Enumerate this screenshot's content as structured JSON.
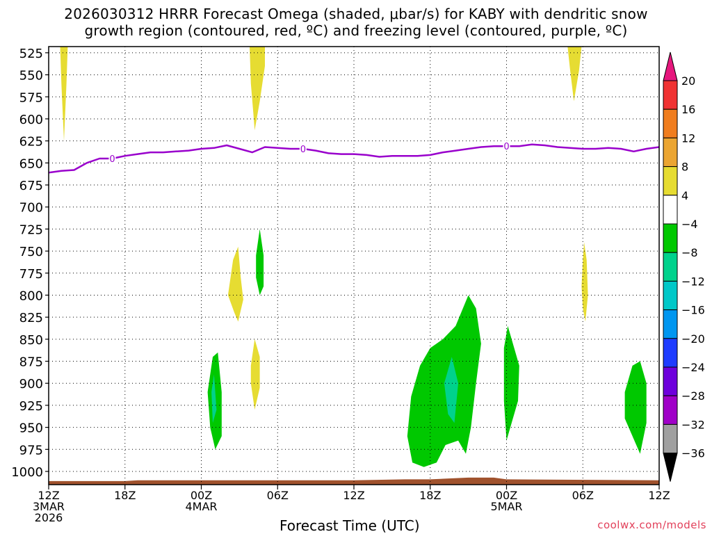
{
  "title_line1": "2026030312 HRRR Forecast Omega (shaded, μbar/s) for KABY with dendritic snow",
  "title_line2": "growth region (contoured, red, ºC) and freezing level (contoured, purple, ºC)",
  "credit": "coolwx.com/models",
  "chart_data": {
    "type": "contour",
    "xlabel": "Forecast Time (UTC)",
    "xlim_hours": [
      0,
      48
    ],
    "ylim_hpa": [
      1015,
      518
    ],
    "y_scale": "linear (pressure)",
    "grid": true,
    "x_ticks": [
      {
        "hour": 0,
        "lines": [
          "12Z",
          "3MAR",
          "2026"
        ]
      },
      {
        "hour": 6,
        "lines": [
          "18Z"
        ]
      },
      {
        "hour": 12,
        "lines": [
          "00Z",
          "4MAR"
        ]
      },
      {
        "hour": 18,
        "lines": [
          "06Z"
        ]
      },
      {
        "hour": 24,
        "lines": [
          "12Z"
        ]
      },
      {
        "hour": 30,
        "lines": [
          "18Z"
        ]
      },
      {
        "hour": 36,
        "lines": [
          "00Z",
          "5MAR"
        ]
      },
      {
        "hour": 42,
        "lines": [
          "06Z"
        ]
      },
      {
        "hour": 48,
        "lines": [
          "12Z"
        ]
      }
    ],
    "y_ticks": [
      525,
      550,
      575,
      600,
      625,
      650,
      675,
      700,
      725,
      750,
      775,
      800,
      825,
      850,
      875,
      900,
      925,
      950,
      975,
      1000
    ],
    "freezing_level": {
      "label": "0",
      "color": "#9900cc",
      "label_hours": [
        5,
        20,
        36
      ],
      "points": [
        [
          0,
          661
        ],
        [
          1,
          659
        ],
        [
          2,
          658
        ],
        [
          3,
          650
        ],
        [
          4,
          645
        ],
        [
          5,
          645
        ],
        [
          6,
          642
        ],
        [
          7,
          640
        ],
        [
          8,
          638
        ],
        [
          9,
          638
        ],
        [
          10,
          637
        ],
        [
          11,
          636
        ],
        [
          12,
          634
        ],
        [
          13,
          633
        ],
        [
          14,
          630
        ],
        [
          15,
          634
        ],
        [
          16,
          638
        ],
        [
          17,
          632
        ],
        [
          18,
          633
        ],
        [
          19,
          634
        ],
        [
          20,
          634
        ],
        [
          21,
          636
        ],
        [
          22,
          639
        ],
        [
          23,
          640
        ],
        [
          24,
          640
        ],
        [
          25,
          641
        ],
        [
          26,
          643
        ],
        [
          27,
          642
        ],
        [
          28,
          642
        ],
        [
          29,
          642
        ],
        [
          30,
          641
        ],
        [
          31,
          638
        ],
        [
          32,
          636
        ],
        [
          33,
          634
        ],
        [
          34,
          632
        ],
        [
          35,
          631
        ],
        [
          36,
          631
        ],
        [
          37,
          631
        ],
        [
          38,
          629
        ],
        [
          39,
          630
        ],
        [
          40,
          632
        ],
        [
          41,
          633
        ],
        [
          42,
          634
        ],
        [
          43,
          634
        ],
        [
          44,
          633
        ],
        [
          45,
          634
        ],
        [
          46,
          637
        ],
        [
          47,
          634
        ],
        [
          48,
          632
        ]
      ]
    },
    "omega_regions": [
      {
        "bin": "4 to 8",
        "color": "#e6dc32",
        "points": [
          [
            0.9,
            518
          ],
          [
            1.0,
            560
          ],
          [
            1.2,
            625
          ],
          [
            1.4,
            560
          ],
          [
            1.5,
            518
          ]
        ]
      },
      {
        "bin": "4 to 8",
        "color": "#e6dc32",
        "points": [
          [
            15.8,
            518
          ],
          [
            15.9,
            560
          ],
          [
            16.1,
            595
          ],
          [
            16.2,
            613
          ],
          [
            16.6,
            580
          ],
          [
            17.0,
            540
          ],
          [
            17.0,
            518
          ]
        ]
      },
      {
        "bin": "4 to 8",
        "color": "#e6dc32",
        "points": [
          [
            40.8,
            518
          ],
          [
            41.0,
            545
          ],
          [
            41.3,
            580
          ],
          [
            41.7,
            545
          ],
          [
            41.9,
            518
          ]
        ]
      },
      {
        "bin": "4 to 8",
        "color": "#e6dc32",
        "points": [
          [
            14.1,
            800
          ],
          [
            14.5,
            760
          ],
          [
            14.9,
            745
          ],
          [
            15.1,
            780
          ],
          [
            15.3,
            805
          ],
          [
            14.9,
            830
          ],
          [
            14.6,
            820
          ]
        ]
      },
      {
        "bin": "4 to 8",
        "color": "#e6dc32",
        "points": [
          [
            15.9,
            880
          ],
          [
            16.2,
            850
          ],
          [
            16.6,
            870
          ],
          [
            16.6,
            905
          ],
          [
            16.2,
            930
          ],
          [
            15.9,
            900
          ]
        ]
      },
      {
        "bin": "4 to 8",
        "color": "#e6dc32",
        "points": [
          [
            41.9,
            790
          ],
          [
            42.0,
            760
          ],
          [
            42.1,
            740
          ],
          [
            42.3,
            760
          ],
          [
            42.4,
            800
          ],
          [
            42.2,
            830
          ],
          [
            42.0,
            815
          ]
        ]
      },
      {
        "bin": "-8 to -4",
        "color": "#00c800",
        "points": [
          [
            16.3,
            755
          ],
          [
            16.6,
            725
          ],
          [
            16.9,
            755
          ],
          [
            16.9,
            790
          ],
          [
            16.6,
            800
          ],
          [
            16.3,
            780
          ]
        ]
      },
      {
        "bin": "-8 to -4",
        "color": "#00c800",
        "points": [
          [
            12.5,
            910
          ],
          [
            12.9,
            870
          ],
          [
            13.3,
            865
          ],
          [
            13.6,
            910
          ],
          [
            13.6,
            960
          ],
          [
            13.1,
            975
          ],
          [
            12.7,
            950
          ]
        ]
      },
      {
        "bin": "-8 to -4",
        "color": "#00c800",
        "points": [
          [
            28.2,
            960
          ],
          [
            28.5,
            915
          ],
          [
            29.2,
            880
          ],
          [
            30.0,
            860
          ],
          [
            31.0,
            850
          ],
          [
            32.0,
            835
          ],
          [
            33.0,
            800
          ],
          [
            33.6,
            815
          ],
          [
            34.0,
            855
          ],
          [
            33.6,
            900
          ],
          [
            33.2,
            950
          ],
          [
            32.8,
            980
          ],
          [
            32.2,
            965
          ],
          [
            31.2,
            970
          ],
          [
            30.5,
            990
          ],
          [
            29.5,
            995
          ],
          [
            28.6,
            990
          ]
        ]
      },
      {
        "bin": "-8 to -4",
        "color": "#00c800",
        "points": [
          [
            35.8,
            860
          ],
          [
            36.1,
            835
          ],
          [
            36.6,
            860
          ],
          [
            37.0,
            880
          ],
          [
            36.9,
            920
          ],
          [
            36.4,
            945
          ],
          [
            36.0,
            965
          ],
          [
            35.8,
            920
          ]
        ]
      },
      {
        "bin": "-8 to -4",
        "color": "#00c800",
        "points": [
          [
            45.3,
            910
          ],
          [
            45.9,
            880
          ],
          [
            46.5,
            875
          ],
          [
            47.0,
            900
          ],
          [
            47.0,
            945
          ],
          [
            46.5,
            980
          ],
          [
            45.9,
            960
          ],
          [
            45.3,
            940
          ]
        ]
      },
      {
        "bin": "-12 to -8",
        "color": "#00d28c",
        "points": [
          [
            12.8,
            910
          ],
          [
            13.0,
            890
          ],
          [
            13.2,
            930
          ],
          [
            12.9,
            945
          ]
        ]
      },
      {
        "bin": "-12 to -8",
        "color": "#00d28c",
        "points": [
          [
            31.1,
            900
          ],
          [
            31.7,
            870
          ],
          [
            32.2,
            900
          ],
          [
            31.9,
            945
          ],
          [
            31.4,
            935
          ]
        ]
      }
    ],
    "ground_band": {
      "color": "#a0522d",
      "bottom_hpa": 1015,
      "top_hpa": [
        [
          0,
          1011
        ],
        [
          6,
          1011
        ],
        [
          7,
          1010
        ],
        [
          24,
          1010
        ],
        [
          28,
          1009
        ],
        [
          30,
          1009
        ],
        [
          33,
          1007
        ],
        [
          35,
          1007
        ],
        [
          36,
          1009
        ],
        [
          48,
          1010
        ]
      ]
    },
    "colorbar": {
      "levels": [
        20,
        16,
        12,
        8,
        4,
        -4,
        -8,
        -12,
        -16,
        -20,
        -24,
        -28,
        -32,
        -36
      ],
      "bins": [
        {
          "range": ">20",
          "color": "#e6177d"
        },
        {
          "range": "16 to 20",
          "color": "#f03232"
        },
        {
          "range": "12 to 16",
          "color": "#f07d1e"
        },
        {
          "range": "8 to 12",
          "color": "#eba532"
        },
        {
          "range": "4 to 8",
          "color": "#e6dc32"
        },
        {
          "range": "-4 to 4",
          "color": "#ffffff"
        },
        {
          "range": "-8 to -4",
          "color": "#00c800"
        },
        {
          "range": "-12 to -8",
          "color": "#00d28c"
        },
        {
          "range": "-16 to -12",
          "color": "#00c8c8"
        },
        {
          "range": "-20 to -16",
          "color": "#0096f0"
        },
        {
          "range": "-24 to -20",
          "color": "#1e3cff"
        },
        {
          "range": "-28 to -24",
          "color": "#6e00dc"
        },
        {
          "range": "-32 to -28",
          "color": "#a000c8"
        },
        {
          "range": "-36 to -32",
          "color": "#a0a0a0"
        },
        {
          "range": "<-36",
          "color": "#000000"
        }
      ]
    }
  }
}
